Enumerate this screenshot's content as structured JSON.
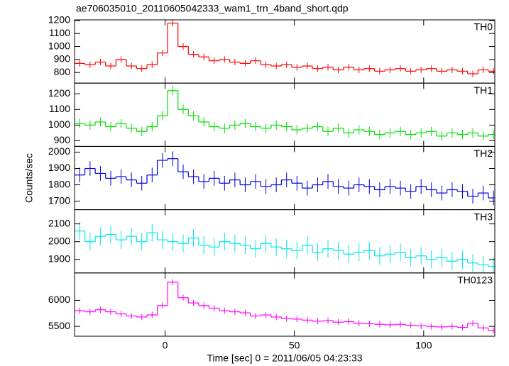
{
  "chart_data": {
    "type": "step",
    "title": "ae706035010_20110605042333_wam1_trn_4band_short.qdp",
    "xlabel": "Time [sec] 0 = 2011/06/05 04:23:33",
    "ylabel": "Counts/sec",
    "x": [
      -33,
      -29,
      -25,
      -21,
      -17,
      -13,
      -9,
      -5,
      -1,
      3,
      7,
      11,
      15,
      19,
      23,
      27,
      31,
      35,
      39,
      43,
      47,
      51,
      55,
      59,
      63,
      67,
      71,
      75,
      79,
      83,
      87,
      91,
      95,
      99,
      103,
      107,
      111,
      115,
      119,
      123,
      127
    ],
    "xlim": [
      -35,
      127.5
    ],
    "xticks": [
      0,
      50,
      100
    ],
    "panels": [
      {
        "name": "TH0",
        "color": "#ff0000",
        "error": 25,
        "ylim": [
          718,
          1205
        ],
        "yticks": [
          800,
          900,
          1000,
          1100,
          1200
        ],
        "values": [
          870,
          860,
          880,
          850,
          900,
          850,
          830,
          860,
          950,
          1180,
          1000,
          940,
          920,
          890,
          900,
          880,
          870,
          890,
          860,
          850,
          860,
          840,
          850,
          830,
          840,
          820,
          840,
          820,
          830,
          810,
          820,
          830,
          810,
          820,
          830,
          810,
          820,
          810,
          790,
          820,
          810
        ]
      },
      {
        "name": "TH1",
        "color": "#00e000",
        "error": 30,
        "ylim": [
          864,
          1268
        ],
        "yticks": [
          900,
          1000,
          1100,
          1200
        ],
        "values": [
          1010,
          1000,
          1020,
          990,
          1010,
          980,
          960,
          990,
          1060,
          1220,
          1100,
          1060,
          1020,
          990,
          980,
          1000,
          1010,
          990,
          980,
          1000,
          990,
          970,
          980,
          990,
          960,
          980,
          950,
          970,
          960,
          940,
          950,
          960,
          940,
          950,
          960,
          930,
          950,
          940,
          950,
          930,
          940
        ]
      },
      {
        "name": "TH2",
        "color": "#0000e0",
        "error": 45,
        "ylim": [
          1648,
          2035
        ],
        "yticks": [
          1700,
          1800,
          1900,
          2000
        ],
        "values": [
          1860,
          1900,
          1870,
          1840,
          1850,
          1830,
          1810,
          1860,
          1950,
          1960,
          1880,
          1850,
          1820,
          1840,
          1810,
          1830,
          1800,
          1820,
          1790,
          1800,
          1830,
          1810,
          1780,
          1800,
          1820,
          1790,
          1780,
          1800,
          1790,
          1770,
          1790,
          1780,
          1760,
          1790,
          1770,
          1750,
          1770,
          1760,
          1730,
          1750,
          1720
        ]
      },
      {
        "name": "TH3",
        "color": "#00e8e8",
        "error": 50,
        "ylim": [
          1824,
          2180
        ],
        "yticks": [
          1900,
          2000,
          2100
        ],
        "values": [
          2060,
          2000,
          2030,
          2040,
          2010,
          2030,
          2000,
          2050,
          2010,
          2000,
          1990,
          2020,
          1980,
          1970,
          2000,
          1990,
          1980,
          1960,
          1990,
          1970,
          1960,
          1950,
          1980,
          1940,
          1960,
          1950,
          1930,
          1940,
          1950,
          1920,
          1930,
          1940,
          1910,
          1920,
          1900,
          1910,
          1890,
          1900,
          1880,
          1870,
          1860
        ]
      },
      {
        "name": "TH0123",
        "color": "#ff00ff",
        "error": 60,
        "ylim": [
          5311,
          6527
        ],
        "yticks": [
          5500,
          6000
        ],
        "values": [
          5800,
          5780,
          5820,
          5780,
          5740,
          5700,
          5680,
          5720,
          5900,
          6350,
          6050,
          5950,
          5900,
          5850,
          5800,
          5780,
          5760,
          5700,
          5720,
          5680,
          5650,
          5640,
          5620,
          5600,
          5610,
          5580,
          5590,
          5560,
          5550,
          5540,
          5530,
          5540,
          5520,
          5510,
          5500,
          5490,
          5500,
          5480,
          5560,
          5470,
          5420
        ]
      }
    ]
  }
}
